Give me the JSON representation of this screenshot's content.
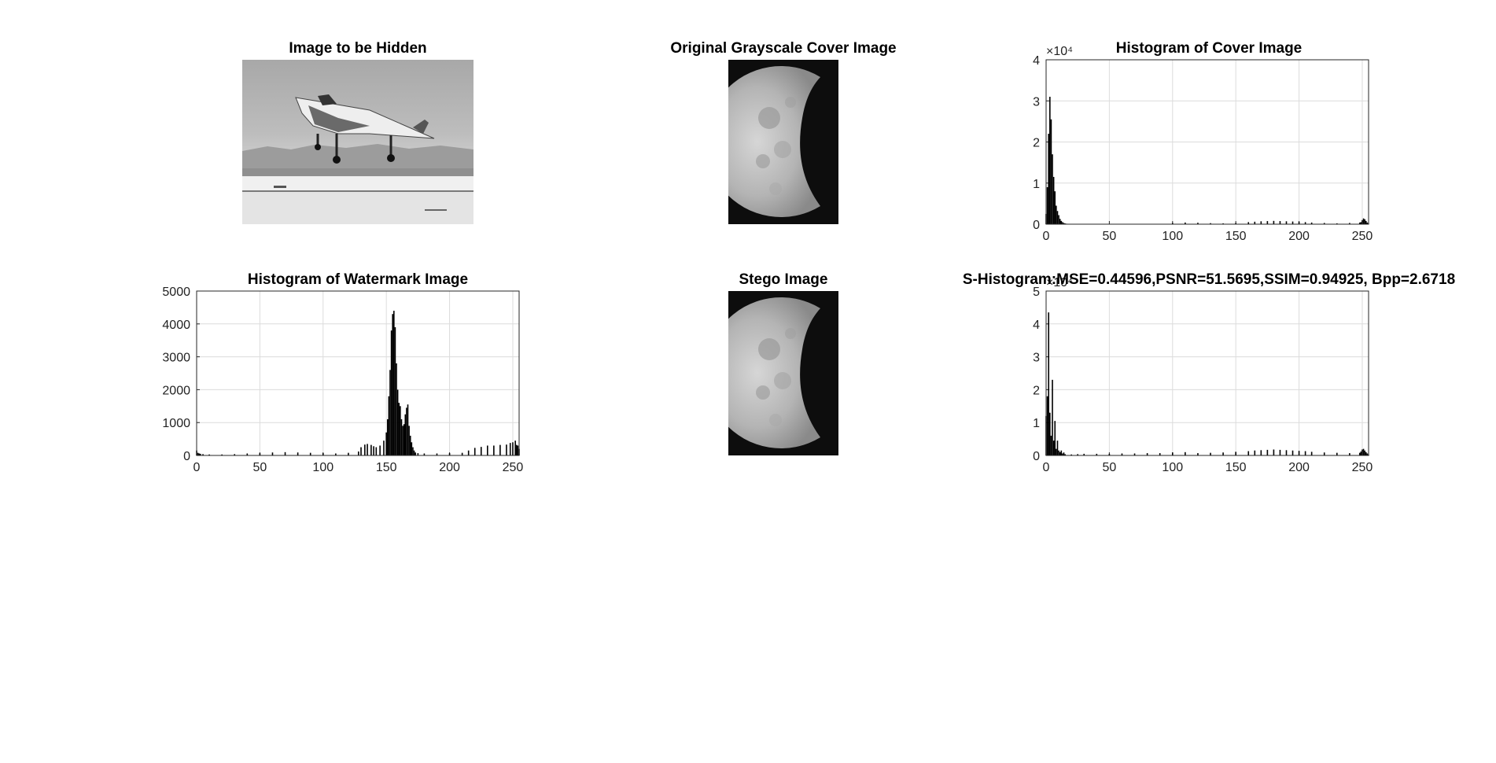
{
  "figure": {
    "panels": [
      {
        "title": "Image to be Hidden"
      },
      {
        "title": "Original Grayscale Cover Image"
      },
      {
        "title": "Histogram of Cover Image"
      },
      {
        "title": "Histogram of Watermark Image"
      },
      {
        "title": "Stego Image"
      },
      {
        "title": "S-Histogram:MSE=0.44596,PSNR=51.5695,SSIM=0.94925, Bpp=2.6718"
      }
    ]
  },
  "chart_data": [
    {
      "type": "bar",
      "title": "Histogram of Cover Image",
      "xlim": [
        0,
        255
      ],
      "ylim": [
        0,
        40000
      ],
      "x_ticks": [
        "0",
        "50",
        "100",
        "150",
        "200",
        "250"
      ],
      "y_ticks": [
        "0",
        "1",
        "2",
        "3",
        "4"
      ],
      "y_exponent": "×10⁴",
      "grid": true,
      "x": [
        0,
        1,
        2,
        3,
        4,
        5,
        6,
        7,
        8,
        9,
        10,
        11,
        12,
        13,
        14,
        15,
        16,
        17,
        18,
        19,
        20,
        25,
        30,
        40,
        60,
        80,
        100,
        110,
        120,
        130,
        140,
        150,
        160,
        165,
        170,
        175,
        180,
        185,
        190,
        195,
        200,
        205,
        210,
        220,
        230,
        240,
        248,
        249,
        250,
        251,
        252,
        253,
        254,
        255
      ],
      "values": [
        2500,
        9000,
        22000,
        31000,
        25500,
        17000,
        11500,
        8000,
        4500,
        3200,
        2200,
        1300,
        800,
        500,
        300,
        180,
        120,
        80,
        50,
        30,
        20,
        15,
        10,
        10,
        10,
        10,
        300,
        400,
        350,
        250,
        200,
        300,
        500,
        600,
        700,
        750,
        800,
        750,
        700,
        650,
        600,
        500,
        400,
        300,
        200,
        300,
        400,
        500,
        1000,
        1400,
        1200,
        800,
        400,
        100
      ]
    },
    {
      "type": "bar",
      "title": "Histogram of Watermark Image",
      "xlim": [
        0,
        255
      ],
      "ylim": [
        0,
        5000
      ],
      "x_ticks": [
        "0",
        "50",
        "100",
        "150",
        "200",
        "250"
      ],
      "y_ticks": [
        "0",
        "1000",
        "2000",
        "3000",
        "4000",
        "5000"
      ],
      "grid": true,
      "x": [
        0,
        1,
        2,
        3,
        5,
        10,
        20,
        30,
        40,
        50,
        60,
        70,
        80,
        90,
        100,
        110,
        120,
        128,
        130,
        133,
        135,
        138,
        140,
        142,
        145,
        148,
        150,
        151,
        152,
        153,
        154,
        155,
        156,
        157,
        158,
        159,
        160,
        161,
        162,
        163,
        164,
        165,
        166,
        167,
        168,
        169,
        170,
        171,
        172,
        173,
        175,
        180,
        190,
        200,
        210,
        215,
        220,
        225,
        230,
        235,
        240,
        245,
        248,
        250,
        252,
        253,
        254,
        255
      ],
      "values": [
        150,
        80,
        60,
        50,
        40,
        30,
        30,
        40,
        60,
        70,
        90,
        100,
        90,
        80,
        70,
        60,
        80,
        120,
        250,
        330,
        350,
        320,
        280,
        250,
        300,
        450,
        700,
        1100,
        1800,
        2600,
        3800,
        4300,
        4400,
        3900,
        2800,
        2000,
        1600,
        1500,
        1100,
        900,
        950,
        1250,
        1450,
        1550,
        900,
        600,
        400,
        250,
        150,
        90,
        70,
        60,
        60,
        70,
        80,
        150,
        230,
        260,
        300,
        300,
        320,
        330,
        380,
        400,
        450,
        320,
        300,
        200
      ]
    },
    {
      "type": "bar",
      "title": "S-Histogram:MSE=0.44596,PSNR=51.5695,SSIM=0.94925, Bpp=2.6718",
      "xlim": [
        0,
        255
      ],
      "ylim": [
        0,
        50000
      ],
      "x_ticks": [
        "0",
        "50",
        "100",
        "150",
        "200",
        "250"
      ],
      "y_ticks": [
        "0",
        "1",
        "2",
        "3",
        "4",
        "5"
      ],
      "y_exponent": "×10⁴",
      "grid": true,
      "x": [
        0,
        1,
        2,
        3,
        4,
        5,
        6,
        7,
        8,
        9,
        10,
        11,
        12,
        13,
        14,
        15,
        20,
        25,
        30,
        40,
        50,
        60,
        70,
        80,
        90,
        100,
        110,
        120,
        130,
        140,
        150,
        160,
        165,
        170,
        175,
        180,
        185,
        190,
        195,
        200,
        205,
        210,
        220,
        230,
        240,
        248,
        249,
        250,
        251,
        252,
        253,
        254,
        255
      ],
      "values": [
        12000,
        18000,
        43500,
        13000,
        6000,
        23000,
        4500,
        10500,
        2000,
        4500,
        1500,
        1000,
        1500,
        600,
        900,
        400,
        300,
        400,
        500,
        500,
        500,
        600,
        600,
        700,
        700,
        900,
        1000,
        700,
        800,
        900,
        1100,
        1300,
        1500,
        1600,
        1700,
        1800,
        1700,
        1600,
        1500,
        1400,
        1300,
        1100,
        900,
        800,
        700,
        800,
        1200,
        1800,
        2000,
        1500,
        1000,
        600,
        200
      ]
    }
  ]
}
